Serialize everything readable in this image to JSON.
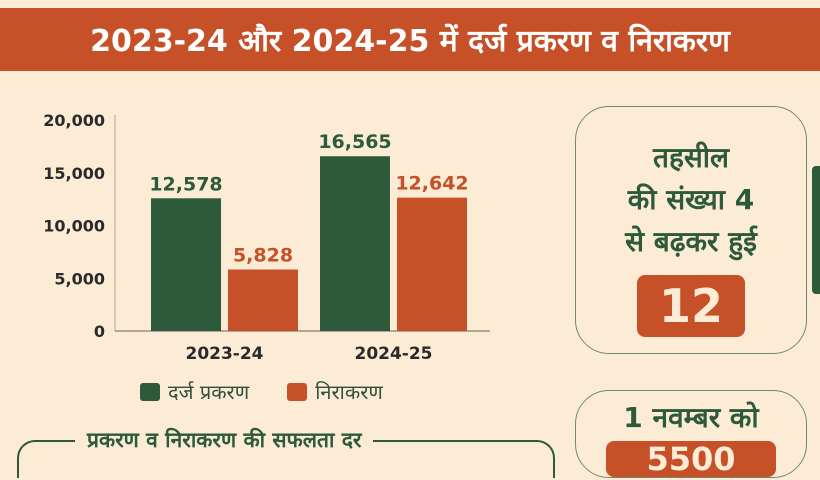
{
  "header": {
    "title": "2023-24 और 2024-25 में दर्ज प्रकरण व निराकरण"
  },
  "chart_data": {
    "type": "bar",
    "title": "2023-24 और 2024-25 में दर्ज प्रकरण व निराकरण",
    "categories": [
      "2023-24",
      "2024-25"
    ],
    "series": [
      {
        "name": "दर्ज प्रकरण",
        "values": [
          12578,
          16565
        ],
        "labels": [
          "12,578",
          "16,565"
        ],
        "color": "#2c5a3b"
      },
      {
        "name": "निराकरण",
        "values": [
          5828,
          12642
        ],
        "labels": [
          "5,828",
          "12,642"
        ],
        "color": "#c65027"
      }
    ],
    "ylim": [
      0,
      20000
    ],
    "yticks": [
      "0",
      "5,000",
      "10,000",
      "15,000",
      "20,000"
    ],
    "ytick_values": [
      0,
      5000,
      10000,
      15000,
      20000
    ],
    "legend": "bottom",
    "grid": false
  },
  "card1": {
    "lines": [
      "तहसील",
      "की संख्या 4",
      "से बढ़कर हुई"
    ],
    "value": "12"
  },
  "card2": {
    "line": "1 नवम्बर को",
    "value": "5500"
  },
  "rate": {
    "title": "प्रकरण व निराकरण की सफलता दर"
  }
}
